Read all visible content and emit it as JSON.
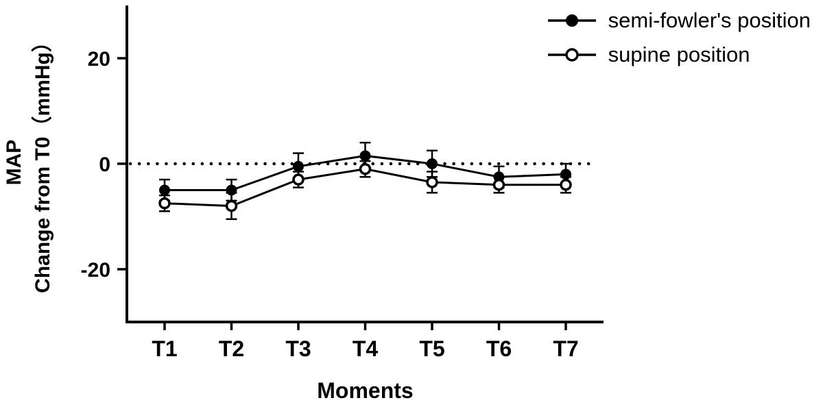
{
  "chart_data": {
    "type": "line",
    "title": "",
    "xlabel": "Moments",
    "ylabel_line1": "MAP",
    "ylabel_line2": "Change from T0（mmHg）",
    "categories": [
      "T1",
      "T2",
      "T3",
      "T4",
      "T5",
      "T6",
      "T7"
    ],
    "yticks": [
      20,
      0,
      -20
    ],
    "ylim": [
      -30,
      30
    ],
    "grid": false,
    "legend_position": "top-right",
    "reference_line": {
      "y": 0,
      "style": "dotted"
    },
    "colors": {
      "line": "#000000",
      "background": "#ffffff"
    },
    "series": [
      {
        "name": "semi-fowler's position",
        "marker": "filled-circle",
        "values": [
          -5,
          -5,
          -0.5,
          1.5,
          0,
          -2.5,
          -2
        ],
        "errors": [
          2,
          2,
          2.5,
          2.5,
          2.5,
          2,
          2
        ]
      },
      {
        "name": "supine position",
        "marker": "open-circle",
        "values": [
          -7.5,
          -8,
          -3,
          -1,
          -3.5,
          -4,
          -4
        ],
        "errors": [
          1.5,
          2.5,
          1.5,
          1.5,
          2,
          1.5,
          1.5
        ]
      }
    ]
  }
}
